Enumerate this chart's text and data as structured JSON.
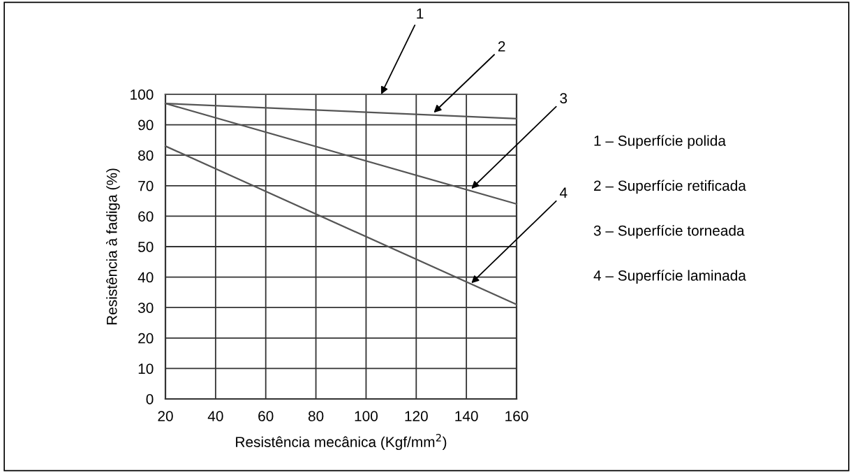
{
  "chart_data": {
    "type": "line",
    "xlabel": "Resistência mecânica (Kgf/mm$^{2}$)",
    "ylabel": "Resistência à fadiga (%)",
    "xlim": [
      20,
      160
    ],
    "ylim": [
      0,
      100
    ],
    "xticks": [
      20,
      40,
      60,
      80,
      100,
      120,
      140,
      160
    ],
    "yticks": [
      0,
      10,
      20,
      30,
      40,
      50,
      60,
      70,
      80,
      90,
      100
    ],
    "grid": true,
    "x": [
      20,
      160
    ],
    "series": [
      {
        "color": "#555555",
        "values": [
          100,
          100
        ]
      },
      {
        "color": "#555555",
        "values": [
          97,
          92
        ]
      },
      {
        "color": "#555555",
        "values": [
          97,
          64
        ]
      },
      {
        "color": "#555555",
        "values": [
          83,
          31
        ]
      }
    ],
    "annotations": [
      {
        "text": "1",
        "x": 106,
        "y": 100
      },
      {
        "text": "2",
        "x": 127,
        "y": 94
      },
      {
        "text": "3",
        "x": 142,
        "y": 69
      },
      {
        "text": "4",
        "x": 142,
        "y": 38
      },
      "1 – Superfície polida",
      "2 – Superfície retificada",
      "3 – Superfície torneada",
      "4 – Superfície laminada"
    ]
  }
}
